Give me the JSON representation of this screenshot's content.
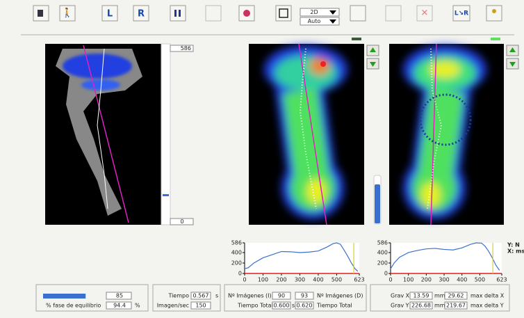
{
  "toolbar": {
    "left_button": "L",
    "right_button": "R",
    "view_mode": "2D",
    "scale_mode": "Auto"
  },
  "left_view": {
    "slider_max": "586",
    "slider_min": "0"
  },
  "axis_units": {
    "y": "Y: N",
    "x": "X: ms"
  },
  "chart_data": [
    {
      "type": "line",
      "color": "#3a6fd0",
      "marker_color": "#e0d020",
      "marker": 593,
      "x": [
        0,
        20,
        50,
        100,
        150,
        200,
        250,
        300,
        350,
        400,
        450,
        480,
        500,
        520,
        540,
        560,
        580,
        600,
        615
      ],
      "values": [
        90,
        110,
        200,
        300,
        360,
        420,
        415,
        400,
        410,
        430,
        510,
        570,
        586,
        560,
        450,
        330,
        200,
        90,
        40
      ],
      "xlim": [
        0,
        623
      ],
      "ylim": [
        0,
        586
      ],
      "xticks": [
        0,
        100,
        200,
        300,
        400,
        500,
        623
      ],
      "yticks": [
        0,
        200,
        400,
        586
      ]
    },
    {
      "type": "line",
      "color": "#3a6fd0",
      "marker_color": "#e0d020",
      "marker": 573,
      "x": [
        0,
        20,
        50,
        100,
        150,
        200,
        250,
        300,
        350,
        400,
        450,
        480,
        510,
        530,
        550,
        570,
        590,
        610
      ],
      "values": [
        90,
        200,
        310,
        400,
        440,
        470,
        480,
        460,
        450,
        490,
        560,
        586,
        580,
        520,
        420,
        300,
        160,
        60
      ],
      "xlim": [
        0,
        623
      ],
      "ylim": [
        0,
        586
      ],
      "xticks": [
        0,
        100,
        200,
        300,
        400,
        500,
        623
      ],
      "yticks": [
        0,
        200,
        400,
        586
      ]
    }
  ],
  "balance_panel": {
    "progress": 85,
    "label": "% fase de equilibrio",
    "percent": "94.4",
    "unit": "%"
  },
  "time_panel": {
    "time_label": "Tiempo",
    "time": "0.567",
    "time_unit": "s",
    "rate_label": "Imagen/sec",
    "rate": "150"
  },
  "images_panel": {
    "left_label": "Nº Imágenes (I)",
    "left_count": "90",
    "right_count": "93",
    "right_label": "Nº Imágenes (D)",
    "total_label_left": "Tiempo Total",
    "total_left": "0.600",
    "total_unit": "s",
    "total_right": "0.620",
    "total_label_right": "Tiempo Total"
  },
  "gravity_panel": {
    "x_label": "Grav X",
    "x_value": "13.59",
    "x_unit": "mm",
    "x_max": "29.62",
    "x_max_label": "max delta X",
    "y_label": "Grav Y",
    "y_value": "226.68",
    "y_unit": "mm",
    "y_max": "219.67",
    "y_max_label": "max delta Y"
  }
}
